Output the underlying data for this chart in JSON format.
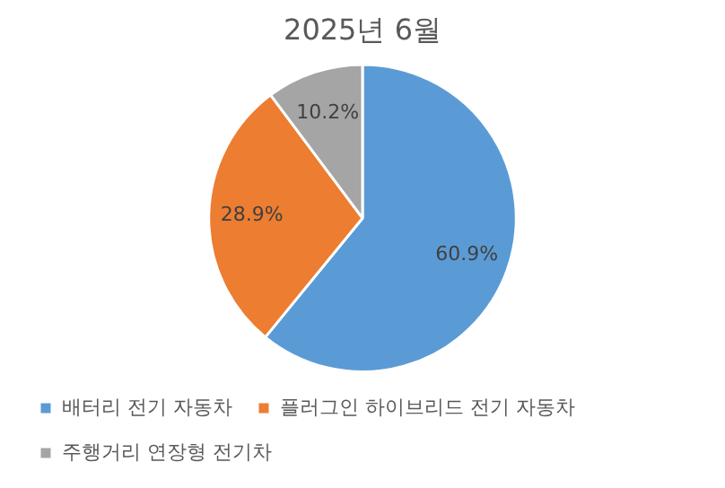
{
  "chart_data": {
    "type": "pie",
    "title": "2025년 6월",
    "categories": [
      "배터리 전기 자동차",
      "플러그인 하이브리드 전기 자동차",
      "주행거리 연장형 전기차"
    ],
    "values": [
      60.9,
      28.9,
      10.2
    ],
    "colors": [
      "#5b9bd5",
      "#ed7d31",
      "#a5a5a5"
    ],
    "value_labels": [
      "60.9%",
      "28.9%",
      "10.2%"
    ],
    "legend": "bottom"
  }
}
